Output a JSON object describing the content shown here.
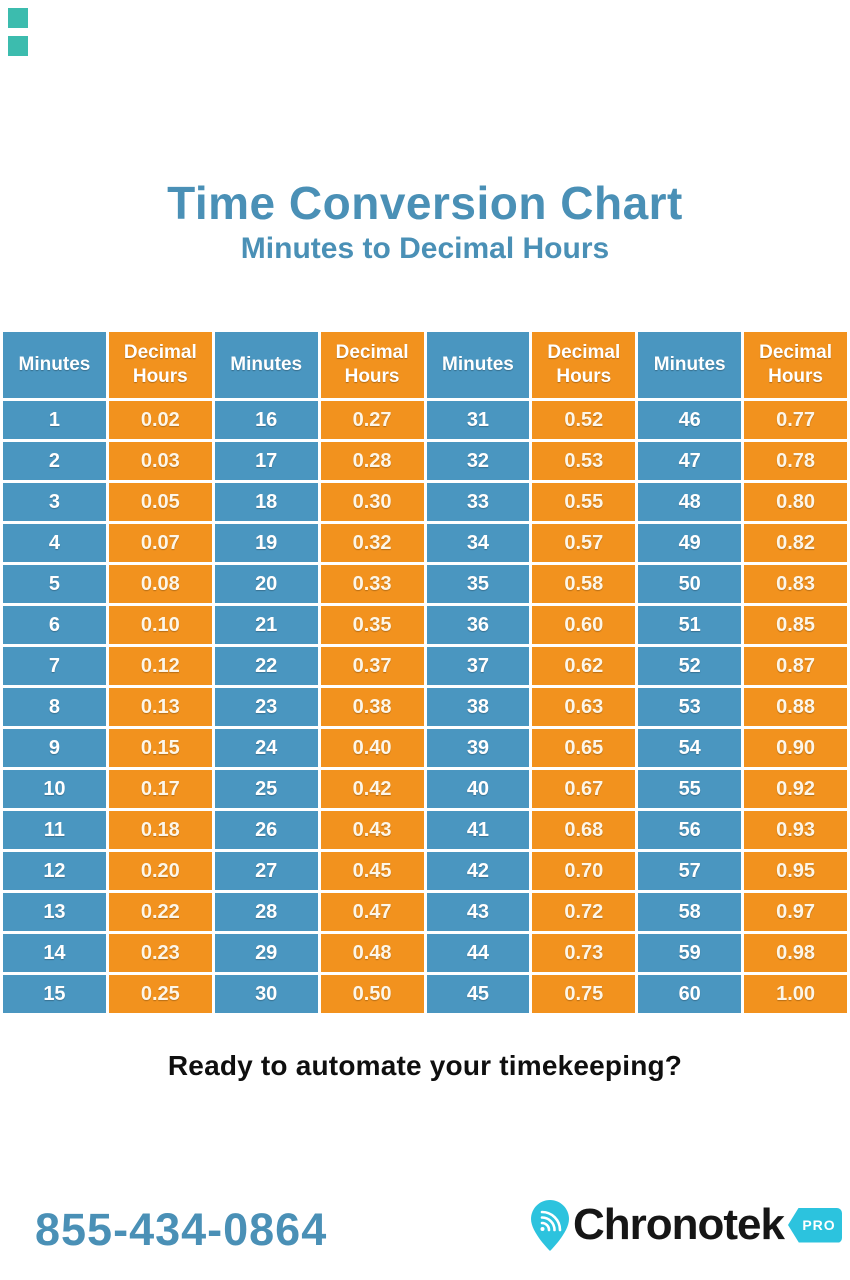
{
  "decor": {
    "corner_square_color": "#3cbcae"
  },
  "header": {
    "title": "Time Conversion Chart",
    "subtitle": "Minutes to Decimal Hours",
    "title_color": "#4a90b6"
  },
  "chart_data": {
    "type": "table",
    "title": "Time Conversion Chart",
    "subtitle": "Minutes to Decimal Hours",
    "columns": [
      "Minutes",
      "Decimal Hours",
      "Minutes",
      "Decimal Hours",
      "Minutes",
      "Decimal Hours",
      "Minutes",
      "Decimal Hours"
    ],
    "rows": [
      [
        "1",
        "0.02",
        "16",
        "0.27",
        "31",
        "0.52",
        "46",
        "0.77"
      ],
      [
        "2",
        "0.03",
        "17",
        "0.28",
        "32",
        "0.53",
        "47",
        "0.78"
      ],
      [
        "3",
        "0.05",
        "18",
        "0.30",
        "33",
        "0.55",
        "48",
        "0.80"
      ],
      [
        "4",
        "0.07",
        "19",
        "0.32",
        "34",
        "0.57",
        "49",
        "0.82"
      ],
      [
        "5",
        "0.08",
        "20",
        "0.33",
        "35",
        "0.58",
        "50",
        "0.83"
      ],
      [
        "6",
        "0.10",
        "21",
        "0.35",
        "36",
        "0.60",
        "51",
        "0.85"
      ],
      [
        "7",
        "0.12",
        "22",
        "0.37",
        "37",
        "0.62",
        "52",
        "0.87"
      ],
      [
        "8",
        "0.13",
        "23",
        "0.38",
        "38",
        "0.63",
        "53",
        "0.88"
      ],
      [
        "9",
        "0.15",
        "24",
        "0.40",
        "39",
        "0.65",
        "54",
        "0.90"
      ],
      [
        "10",
        "0.17",
        "25",
        "0.42",
        "40",
        "0.67",
        "55",
        "0.92"
      ],
      [
        "11",
        "0.18",
        "26",
        "0.43",
        "41",
        "0.68",
        "56",
        "0.93"
      ],
      [
        "12",
        "0.20",
        "27",
        "0.45",
        "42",
        "0.70",
        "57",
        "0.95"
      ],
      [
        "13",
        "0.22",
        "28",
        "0.47",
        "43",
        "0.72",
        "58",
        "0.97"
      ],
      [
        "14",
        "0.23",
        "29",
        "0.48",
        "44",
        "0.73",
        "59",
        "0.98"
      ],
      [
        "15",
        "0.25",
        "30",
        "0.50",
        "45",
        "0.75",
        "60",
        "1.00"
      ]
    ],
    "colors": {
      "minutes_bg": "#4a96c0",
      "decimal_bg": "#f2921e",
      "cell_border": "#ffffff",
      "header_text": "#ffffff"
    },
    "layout": {
      "grid": "white 3px borders",
      "header_row": true,
      "columns_equal_width": true
    }
  },
  "cta": {
    "text": "Ready to automate your timekeeping?"
  },
  "footer": {
    "phone": "855-434-0864",
    "phone_color": "#4a90b6",
    "brand": "Chronotek",
    "badge": "PRO",
    "accent": "#2cc3de",
    "icons": {
      "pin": "location-pin-with-signal-waves"
    }
  }
}
